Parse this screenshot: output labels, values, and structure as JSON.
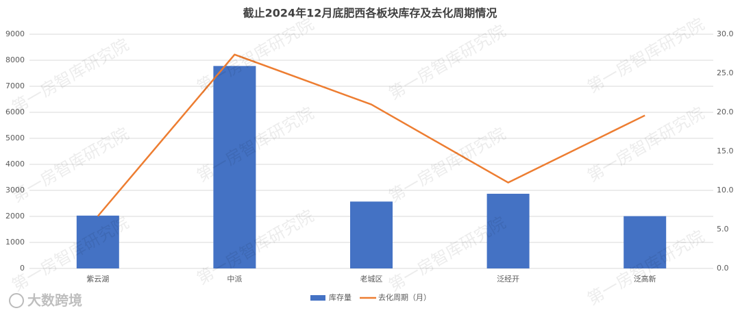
{
  "chart_data": {
    "type": "bar-line",
    "title": "截止2024年12月底肥西各板块库存及去化周期情况",
    "categories": [
      "紫云湖",
      "中派",
      "老城区",
      "泛经开",
      "泛高新"
    ],
    "series": [
      {
        "name": "库存量",
        "type": "bar",
        "color": "#4472c4",
        "values": [
          2030,
          7780,
          2570,
          2870,
          2010
        ]
      },
      {
        "name": "去化周期（月）",
        "type": "line",
        "axis": "y2",
        "color": "#ed7d31",
        "values": [
          6.7,
          27.4,
          21.0,
          11.0,
          19.6
        ]
      }
    ],
    "ylim": [
      0,
      9000
    ],
    "yticks": [
      0,
      1000,
      2000,
      3000,
      4000,
      5000,
      6000,
      7000,
      8000,
      9000
    ],
    "y2lim": [
      0,
      30
    ],
    "y2ticks": [
      {
        "value": 0,
        "label": "0.0"
      },
      {
        "value": 5,
        "label": "5.0"
      },
      {
        "value": 10,
        "label": "10.0"
      },
      {
        "value": 15,
        "label": "15.0"
      },
      {
        "value": 20,
        "label": "20.0"
      },
      {
        "value": 25,
        "label": "25.0"
      },
      {
        "value": 30,
        "label": "30.0"
      }
    ],
    "grid": true,
    "legend": "bottom",
    "watermark": "第一房智库研究院",
    "logo": "大数跨境"
  }
}
